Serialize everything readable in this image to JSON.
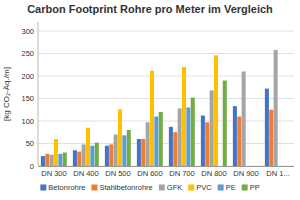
{
  "chart_data": {
    "type": "bar",
    "title": "Carbon Footprint Rohre pro Meter im Vergleich",
    "ylabel": "[kg CO₂-Äq./m]",
    "categories": [
      "DN 300",
      "DN 400",
      "DN 500",
      "DN 600",
      "DN 700",
      "DN 800",
      "DN 900",
      "DN 1..."
    ],
    "series": [
      {
        "name": "Betonrohre",
        "color": "#4472C4",
        "values": [
          22,
          35,
          45,
          60,
          87,
          112,
          133,
          172
        ]
      },
      {
        "name": "Stahlbetonrohre",
        "color": "#ED7D31",
        "values": [
          27,
          32,
          48,
          60,
          75,
          97,
          110,
          125
        ]
      },
      {
        "name": "GFK",
        "color": "#A5A5A5",
        "values": [
          25,
          48,
          70,
          97,
          128,
          168,
          210,
          258
        ]
      },
      {
        "name": "PVC",
        "color": "#FFC000",
        "values": [
          60,
          85,
          126,
          212,
          220,
          246,
          0,
          0
        ]
      },
      {
        "name": "PE",
        "color": "#5B9BD5",
        "values": [
          27,
          45,
          68,
          110,
          130,
          0,
          0,
          0
        ]
      },
      {
        "name": "PP",
        "color": "#70AD47",
        "values": [
          30,
          52,
          80,
          120,
          152,
          190,
          0,
          0
        ]
      }
    ],
    "ylim": [
      0,
      320
    ],
    "yticks": [
      0,
      50,
      100,
      150,
      200,
      250,
      300
    ],
    "grid": true,
    "legend": "bottom"
  }
}
